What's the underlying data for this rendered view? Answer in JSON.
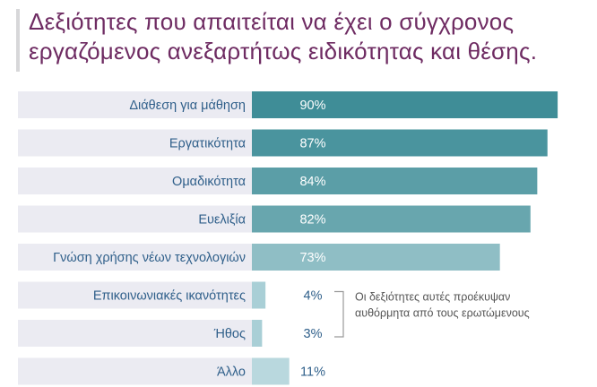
{
  "title_lines": [
    "Δεξιότητες που απαιτείται να έχει ο σύγχρονος",
    "εργαζόμενος ανεξαρτήτως ειδικότητας και θέσης."
  ],
  "chart_data": {
    "type": "bar",
    "orientation": "horizontal",
    "categories": [
      "Διάθεση για μάθηση",
      "Εργατικότητα",
      "Ομαδικότητα",
      "Ευελιξία",
      "Γνώση χρήσης νέων τεχνολογιών",
      "Επικοινωνιακές ικανότητες",
      "Ήθος",
      "Άλλο"
    ],
    "values": [
      90,
      87,
      84,
      82,
      73,
      4,
      3,
      11
    ],
    "value_labels": [
      "90%",
      "87%",
      "84%",
      "82%",
      "73%",
      "4%",
      "3%",
      "11%"
    ],
    "bar_colors": [
      "#3f8d97",
      "#4a949e",
      "#5b9ea7",
      "#68a6ae",
      "#8fbec5",
      "#a9cfd6",
      "#a9cfd6",
      "#b9d8de"
    ],
    "xlim": [
      0,
      100
    ],
    "annotation": "Οι δεξιότητες αυτές προέκυψαν αυθόρμητα από τους ερωτώμενους"
  },
  "colors": {
    "title": "#6e2b62",
    "label_background": "#ebebf2",
    "category_text": "#2f5f8a",
    "value_text_inside": "#ffffff",
    "value_text_outside": "#2f5f8a",
    "annotation_text": "#555555"
  }
}
